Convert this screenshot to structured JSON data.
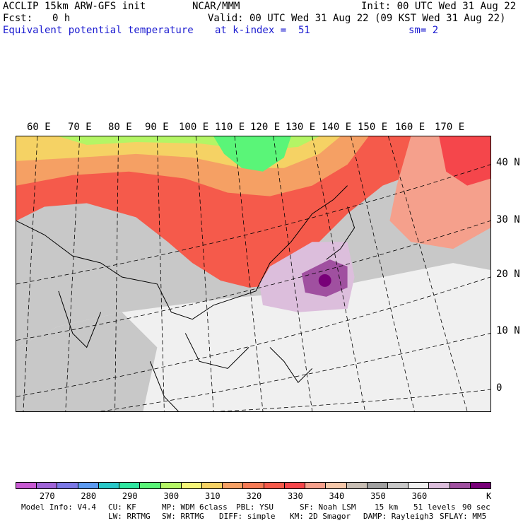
{
  "header": {
    "model": "ACCLIP 15km ARW-GFS init",
    "org": "NCAR/MMM",
    "init": "Init: 00 UTC Wed 31 Aug 22",
    "fcst_label": "Fcst:",
    "fcst_value": "0 h",
    "valid": "Valid: 00 UTC Wed 31 Aug 22 (09 KST Wed 31 Aug 22)",
    "field": "Equivalent potential temperature",
    "level": "at k-index =  51",
    "smoothing": "sm= 2"
  },
  "map": {
    "lon_labels": [
      "60 E",
      "70 E",
      "80 E",
      "90 E",
      "100 E",
      "110 E",
      "120 E",
      "130 E",
      "140 E",
      "150 E",
      "160 E",
      "170 E"
    ],
    "lat_labels": [
      "40 N",
      "30 N",
      "20 N",
      "10 N",
      "0"
    ]
  },
  "colorbar": {
    "colors": [
      "#c85ad2",
      "#a064d8",
      "#7b78e6",
      "#5c9bf2",
      "#29c8c8",
      "#2ee6a0",
      "#5af578",
      "#b4f565",
      "#f5f578",
      "#f5d264",
      "#f5a064",
      "#f57a55",
      "#f55a4b",
      "#f5464b",
      "#f5a08c",
      "#f5c8aa",
      "#c8beb4",
      "#a0a0a0",
      "#c8c8c8",
      "#f0f0f0",
      "#dcbedc",
      "#a050a0",
      "#780078"
    ],
    "tick_labels": [
      "270",
      "280",
      "290",
      "300",
      "310",
      "320",
      "330",
      "340",
      "350",
      "360"
    ],
    "unit": "K"
  },
  "footer": {
    "line1": [
      "Model Info: V4.4",
      "CU: KF",
      "MP: WDM 6class",
      "PBL: YSU",
      "SF: Noah LSM",
      "15 km",
      "51 levels",
      "90 sec"
    ],
    "line2": [
      "LW: RRTMG",
      "SW: RRTMG",
      "DIFF: simple",
      "KM: 2D Smagor",
      "DAMP: Rayleigh3",
      "SFLAY: MM5"
    ]
  }
}
